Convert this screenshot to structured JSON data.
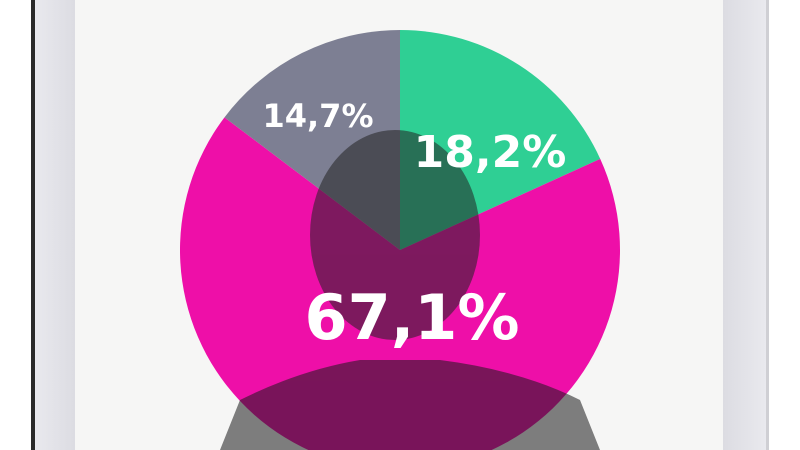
{
  "chart_data": {
    "type": "pie",
    "slices": [
      {
        "label": "18,2%",
        "value": 18.2,
        "color": "#2fcf94"
      },
      {
        "label": "67,1%",
        "value": 67.1,
        "color": "#ee0fa8"
      },
      {
        "label": "14,7%",
        "value": 14.7,
        "color": "#7d7f93"
      }
    ],
    "start": "top",
    "direction": "clockwise"
  }
}
